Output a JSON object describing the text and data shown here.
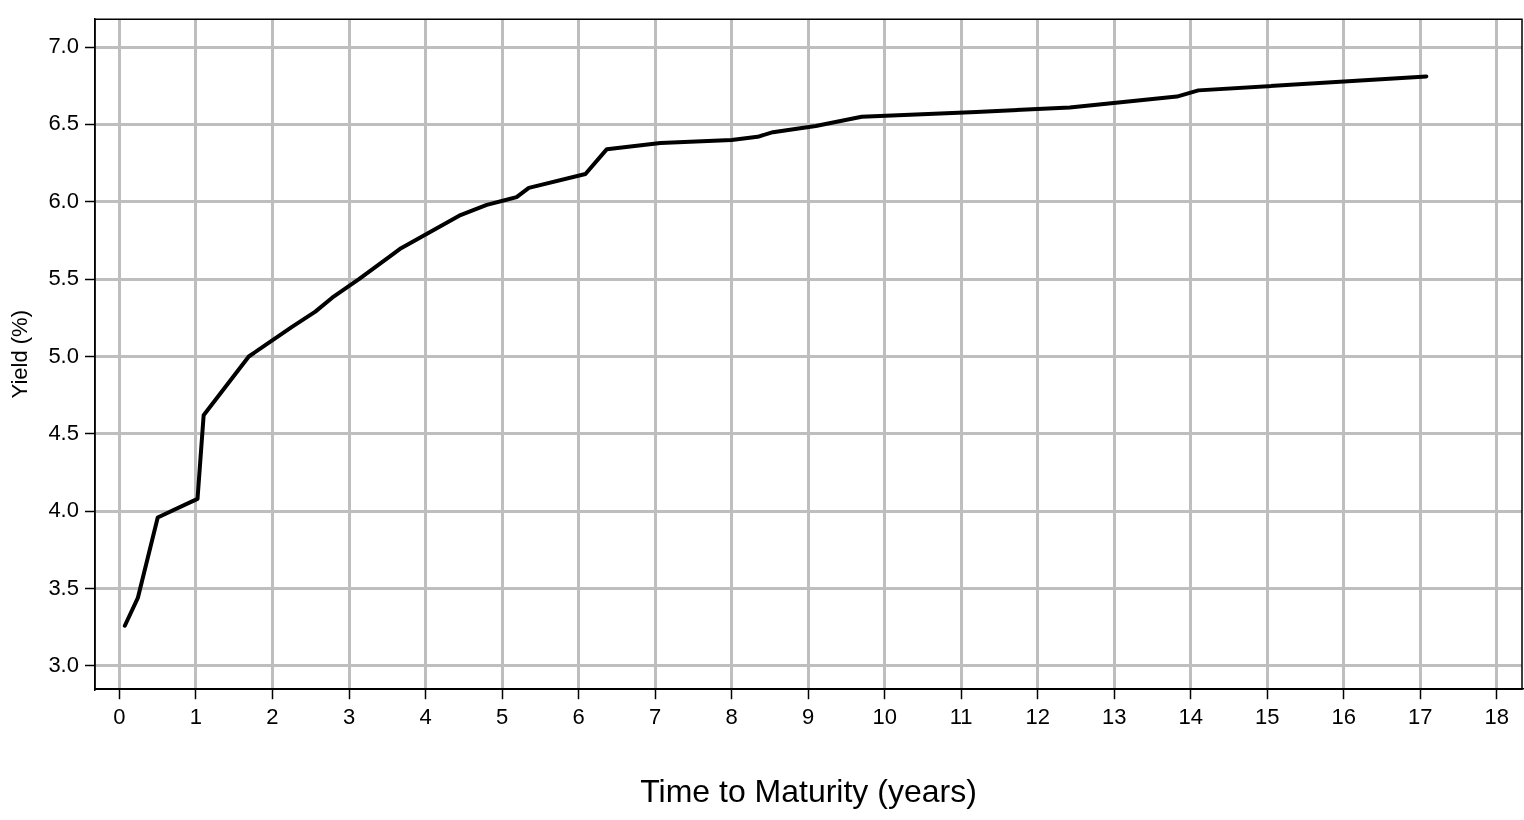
{
  "chart_data": {
    "type": "line",
    "xlabel": "Time to Maturity (years)",
    "ylabel": "Yield (%)",
    "x": [
      0.07,
      0.24,
      0.5,
      1.02,
      1.1,
      1.69,
      2.25,
      2.56,
      2.78,
      3.13,
      3.68,
      4.44,
      4.8,
      5.19,
      5.35,
      6.09,
      6.37,
      7.07,
      8.0,
      8.34,
      8.54,
      9.1,
      9.7,
      11.2,
      12.42,
      13.82,
      14.1,
      17.08
    ],
    "series": [
      {
        "color": "#000000",
        "values": [
          3.26,
          3.44,
          3.96,
          4.08,
          4.62,
          5.0,
          5.19,
          5.29,
          5.38,
          5.5,
          5.7,
          5.91,
          5.98,
          6.03,
          6.09,
          6.18,
          6.34,
          6.38,
          6.4,
          6.42,
          6.45,
          6.49,
          6.55,
          6.58,
          6.61,
          6.68,
          6.72,
          6.81
        ]
      }
    ],
    "xlim": [
      -0.32,
      18.33
    ],
    "ylim": [
      2.85,
      7.18
    ],
    "xticks": [
      0,
      1,
      2,
      3,
      4,
      5,
      6,
      7,
      8,
      9,
      10,
      11,
      12,
      13,
      14,
      15,
      16,
      17,
      18
    ],
    "yticks": [
      {
        "value": 3,
        "label": "3.0"
      },
      {
        "value": 3.5,
        "label": "3.5"
      },
      {
        "value": 4,
        "label": "4.0"
      },
      {
        "value": 4.5,
        "label": "4.5"
      },
      {
        "value": 5,
        "label": "5.0"
      },
      {
        "value": 5.5,
        "label": "5.5"
      },
      {
        "value": 6,
        "label": "6.0"
      },
      {
        "value": 6.5,
        "label": "6.5"
      },
      {
        "value": 7,
        "label": "7.0"
      }
    ],
    "grid": true,
    "line_style": "solid"
  }
}
